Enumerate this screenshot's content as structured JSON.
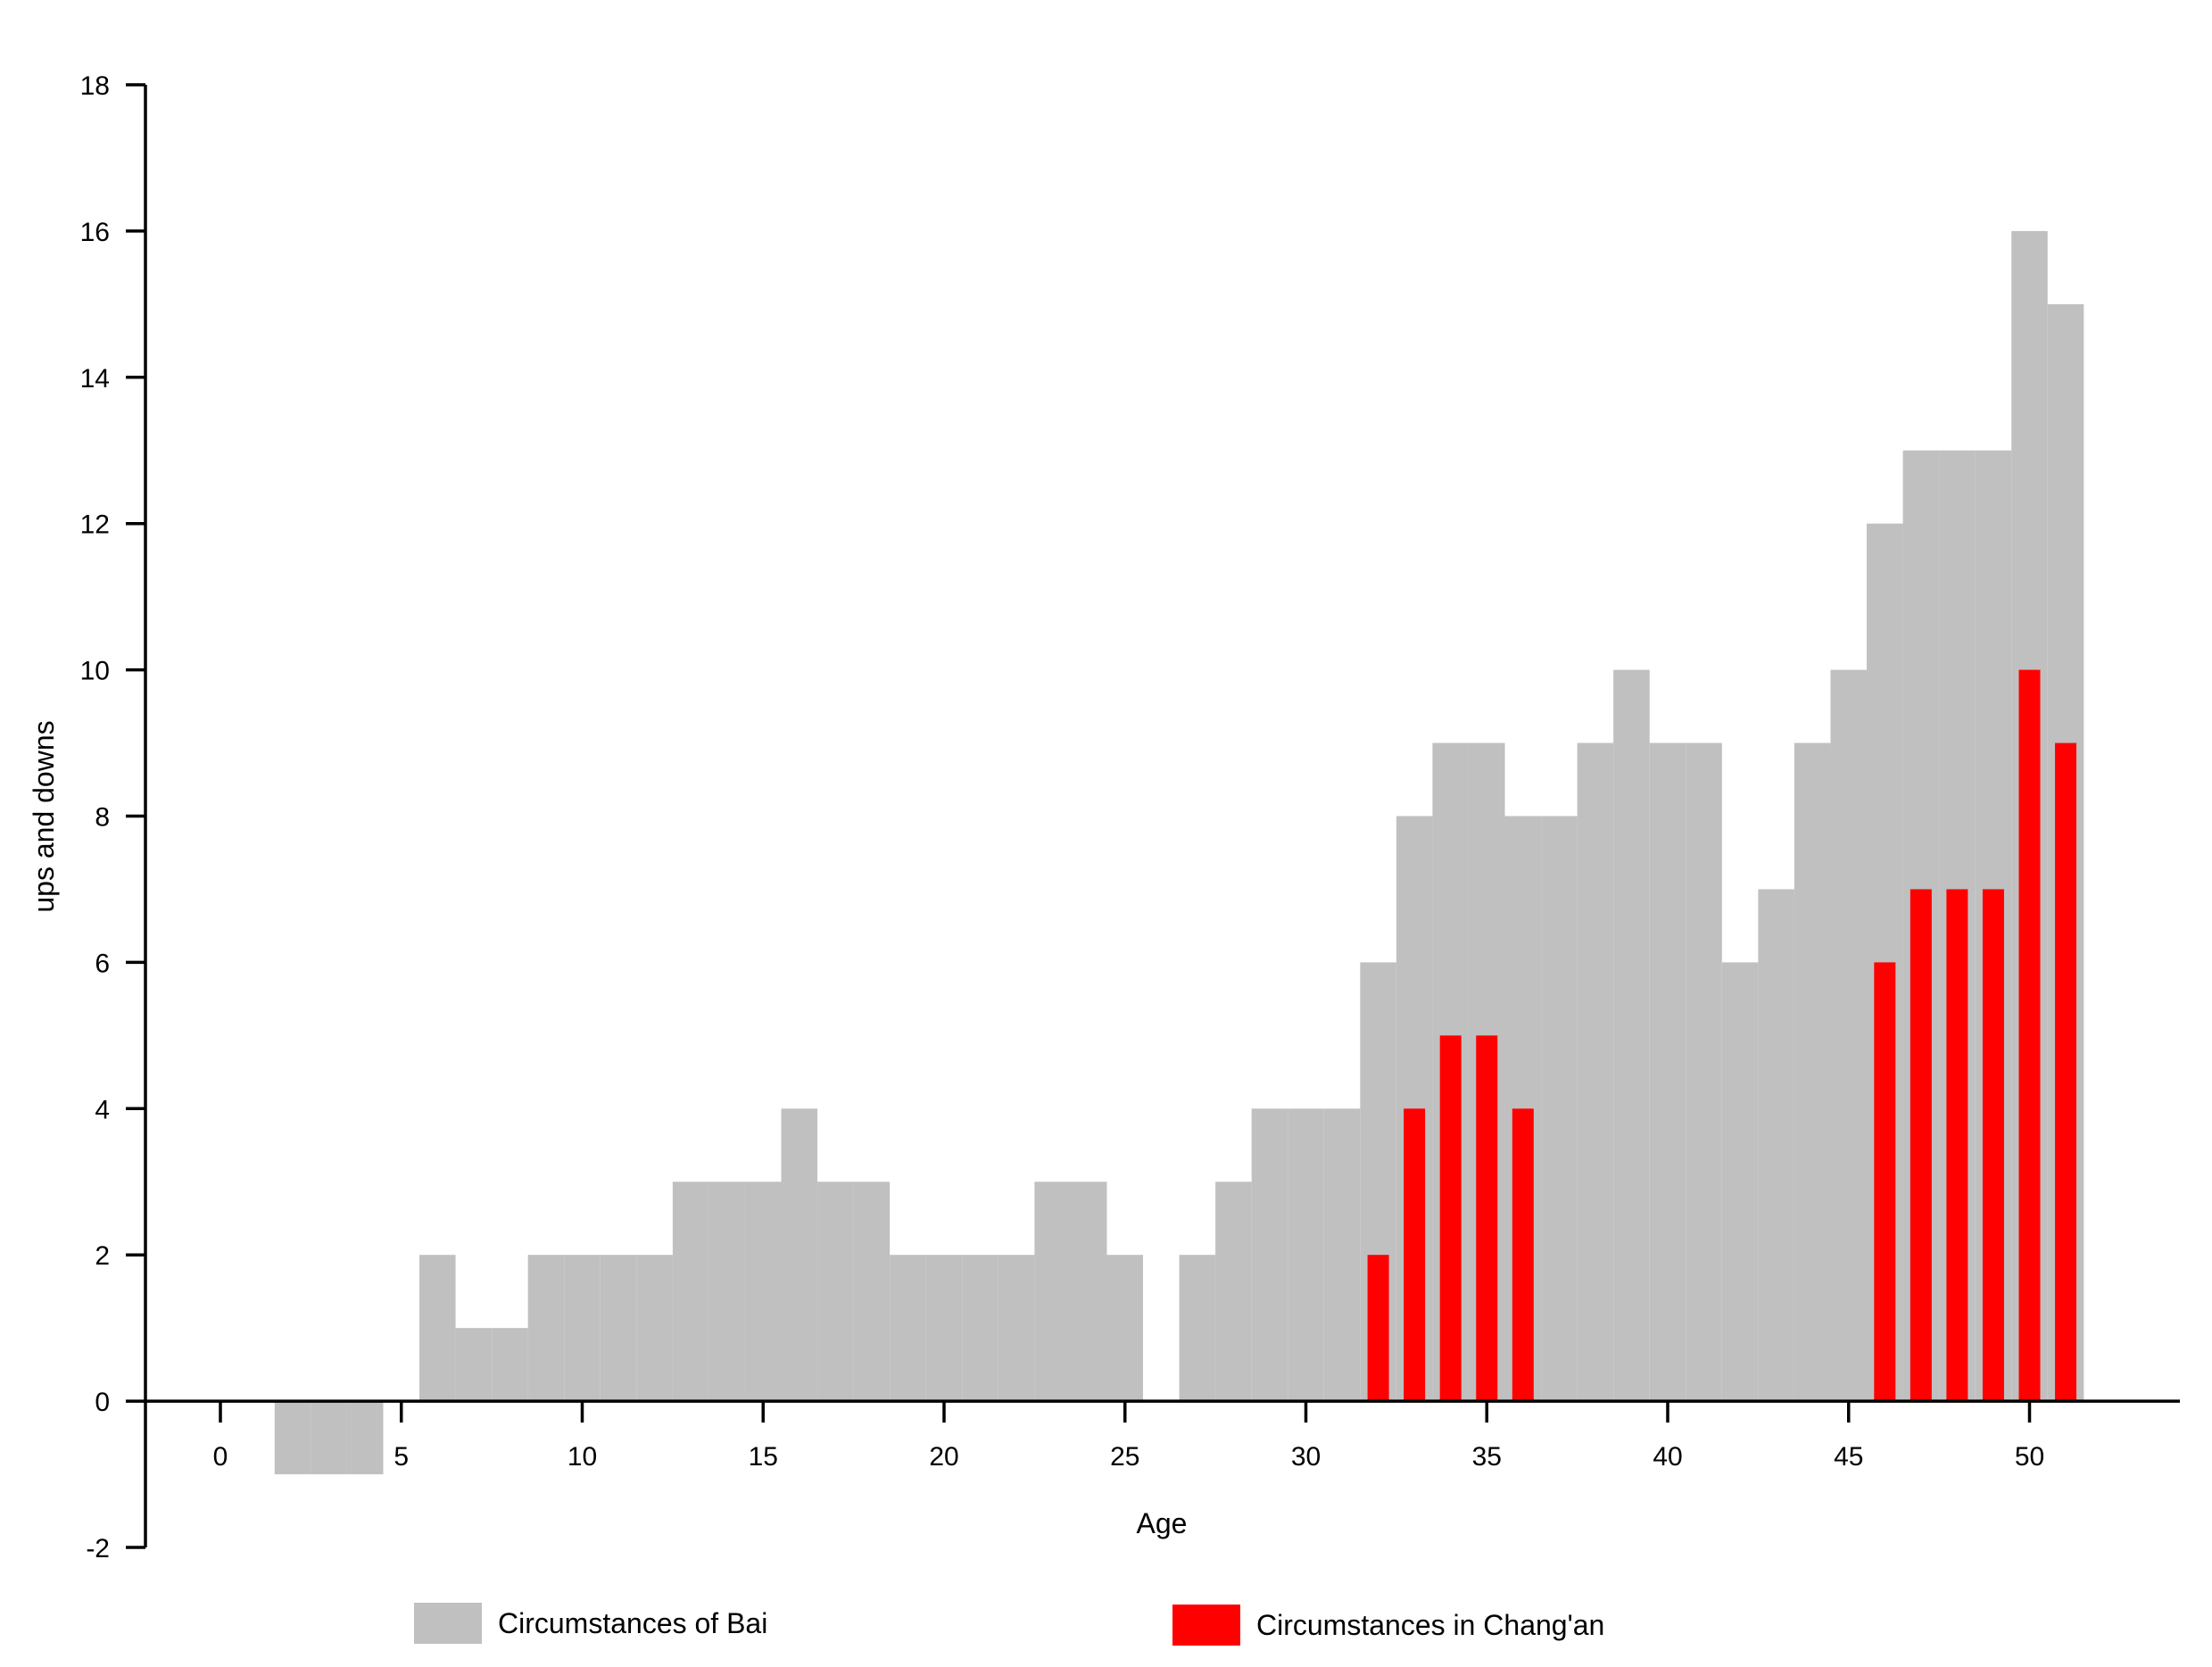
{
  "chart_data": {
    "type": "bar",
    "title": "",
    "xlabel": "Age",
    "ylabel": "ups and downs",
    "xlim": [
      -2,
      54
    ],
    "ylim": [
      -2,
      18
    ],
    "x_ticks": [
      0,
      5,
      10,
      15,
      20,
      25,
      30,
      35,
      40,
      45,
      50
    ],
    "y_ticks": [
      -2,
      0,
      2,
      4,
      6,
      8,
      10,
      12,
      14,
      16,
      18
    ],
    "grid": false,
    "legend": "bottom",
    "series": [
      {
        "name": "Circumstances of Bai",
        "color": "#c0c0c0",
        "style": "wide",
        "x": [
          0,
          1,
          2,
          3,
          4,
          5,
          6,
          7,
          8,
          9,
          10,
          11,
          12,
          13,
          14,
          15,
          16,
          17,
          18,
          19,
          20,
          21,
          22,
          23,
          24,
          25,
          26,
          27,
          28,
          29,
          30,
          31,
          32,
          33,
          34,
          35,
          36,
          37,
          38,
          39,
          40,
          41,
          42,
          43,
          44,
          45,
          46,
          47,
          48,
          49,
          50,
          51
        ],
        "values": [
          0,
          0,
          -1,
          -1,
          -1,
          0,
          2,
          1,
          1,
          2,
          2,
          2,
          2,
          3,
          3,
          3,
          4,
          3,
          3,
          2,
          2,
          2,
          2,
          3,
          3,
          2,
          0,
          2,
          3,
          4,
          4,
          4,
          6,
          8,
          9,
          9,
          8,
          8,
          9,
          10,
          9,
          9,
          6,
          7,
          9,
          10,
          12,
          13,
          13,
          13,
          16,
          15
        ]
      },
      {
        "name": "Circumstances in Chang'an",
        "color": "#ff0000",
        "style": "narrow",
        "x": [
          32,
          33,
          34,
          35,
          36,
          46,
          47,
          48,
          49,
          50,
          51
        ],
        "values": [
          2,
          4,
          5,
          5,
          4,
          6,
          7,
          7,
          7,
          10,
          9
        ]
      }
    ]
  }
}
